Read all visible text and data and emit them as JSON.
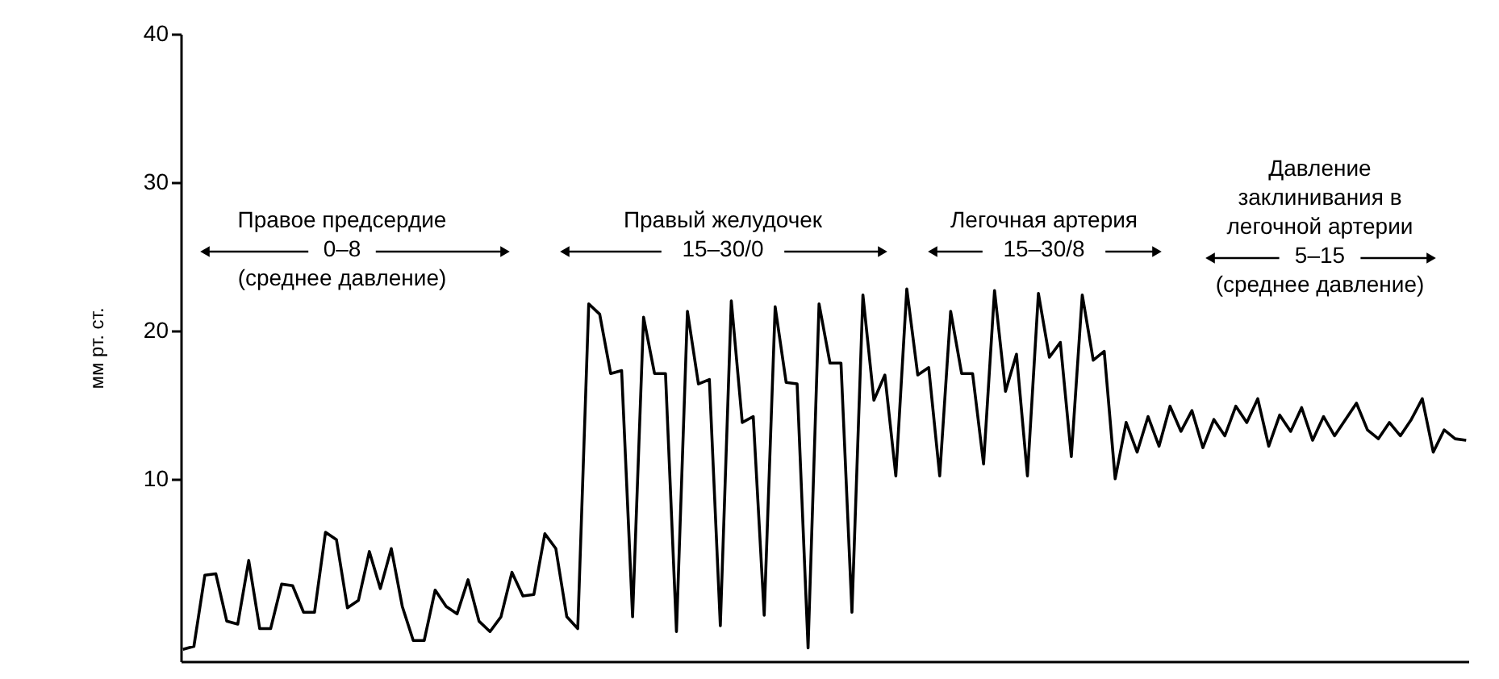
{
  "chart_data": {
    "type": "line",
    "ylabel": "мм рт. ст.",
    "categories": [
      null,
      null,
      null,
      null,
      null,
      null,
      null,
      null,
      null,
      null,
      null,
      null,
      null,
      null,
      null,
      null,
      null,
      null,
      null,
      null,
      null,
      null,
      null,
      null,
      null,
      null,
      null,
      null,
      null,
      null,
      null,
      null,
      null,
      null,
      null,
      null,
      null,
      null,
      null,
      null,
      null,
      null,
      null,
      null,
      null,
      null,
      null,
      null,
      null,
      null,
      null,
      null,
      null,
      null,
      null,
      null,
      null,
      null,
      null,
      null,
      null,
      null,
      null,
      null,
      null,
      null,
      null,
      null,
      null,
      null,
      null,
      null,
      null,
      null,
      null,
      null,
      null,
      null,
      null,
      null,
      null,
      null,
      null,
      null,
      null,
      null,
      null,
      null,
      null,
      null,
      null,
      null,
      null,
      null,
      null,
      null,
      null,
      null,
      null,
      null,
      null,
      null,
      null,
      null,
      null,
      null,
      null,
      null,
      null,
      null,
      null,
      null,
      null,
      null,
      null,
      null,
      null,
      null
    ],
    "series": [
      {
        "color": "#000000",
        "values": [
          -1.5,
          -1.3,
          3.5,
          3.6,
          0.4,
          0.2,
          4.5,
          -0.1,
          -0.1,
          2.9,
          2.8,
          1.0,
          1.0,
          6.4,
          5.9,
          1.3,
          1.8,
          5.1,
          2.6,
          5.3,
          1.4,
          -0.9,
          -0.9,
          2.5,
          1.4,
          0.9,
          3.2,
          0.4,
          -0.3,
          0.7,
          3.7,
          2.1,
          2.2,
          6.3,
          5.3,
          0.7,
          -0.1,
          21.8,
          21.1,
          17.1,
          17.3,
          0.7,
          20.9,
          17.1,
          17.1,
          -0.3,
          21.3,
          16.4,
          16.7,
          0.1,
          22.0,
          13.8,
          14.2,
          0.8,
          21.6,
          16.5,
          16.4,
          -1.4,
          21.8,
          17.8,
          17.8,
          1.0,
          22.4,
          15.3,
          17.0,
          10.2,
          22.8,
          17.0,
          17.5,
          10.2,
          21.3,
          17.1,
          17.1,
          11.0,
          22.7,
          15.9,
          18.4,
          10.2,
          22.5,
          18.2,
          19.2,
          11.5,
          22.4,
          18.0,
          18.6,
          10.0,
          13.8,
          11.8,
          14.2,
          12.2,
          14.9,
          13.2,
          14.6,
          12.1,
          14.0,
          12.9,
          14.9,
          13.8,
          15.4,
          12.2,
          14.3,
          13.2,
          14.8,
          12.6,
          14.2,
          12.9,
          14.0,
          15.1,
          13.3,
          12.7,
          13.8,
          12.9,
          14.0,
          15.4,
          11.8,
          13.3,
          12.7,
          12.6
        ]
      }
    ],
    "ylim": [
      -2.3,
      40
    ],
    "yticks": [
      10,
      20,
      30,
      40
    ],
    "tick_labels": "y",
    "grid": false,
    "line_style": "solid",
    "marker": "none",
    "annotations": [
      "Правое предсердие\n0–8\n(среднее давление)",
      "Правый желудочек\n15–30/0",
      "Легочная артерия\n15–30/8",
      "Давление\nзаклинивания в\nлегочной артерии\n5–15\n(среднее давление)"
    ]
  }
}
